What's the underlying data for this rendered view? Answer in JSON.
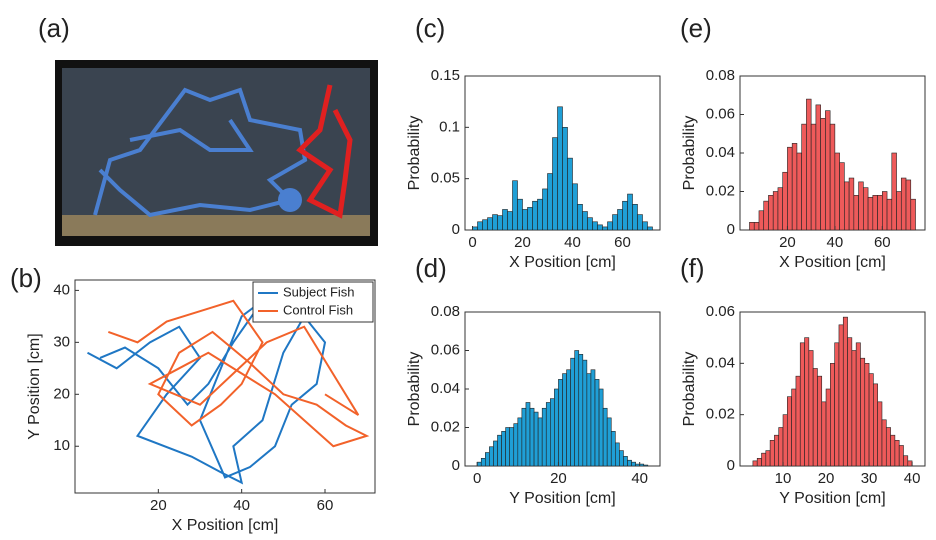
{
  "image_panel": {
    "panel": "(a)"
  },
  "chart_data": [
    {
      "type": "line",
      "panel": "(b)",
      "xlabel": "X Position [cm]",
      "ylabel": "Y Position [cm]",
      "xlim": [
        0,
        72
      ],
      "ylim": [
        1,
        42
      ],
      "xticks": [
        20,
        40,
        60
      ],
      "yticks": [
        10,
        20,
        30,
        40
      ],
      "legend": "upper right",
      "series": [
        {
          "name": "Subject Fish",
          "color": "#1f77c4",
          "x": [
            3,
            10,
            18,
            25,
            30,
            22,
            15,
            28,
            35,
            40,
            38,
            45,
            50,
            55,
            60,
            58,
            52,
            48,
            42,
            36,
            30,
            35,
            40,
            45,
            38,
            32,
            27,
            20,
            12,
            6
          ],
          "y": [
            28,
            25,
            30,
            33,
            27,
            20,
            12,
            8,
            5,
            3,
            10,
            15,
            28,
            35,
            30,
            22,
            18,
            10,
            6,
            4,
            15,
            25,
            35,
            38,
            30,
            22,
            18,
            25,
            29,
            27
          ]
        },
        {
          "name": "Control Fish",
          "color": "#f2622a",
          "x": [
            8,
            15,
            22,
            30,
            38,
            45,
            40,
            35,
            28,
            20,
            25,
            33,
            42,
            50,
            58,
            65,
            70,
            62,
            55,
            48,
            40,
            32,
            25,
            18,
            30,
            38,
            46,
            55,
            68,
            60
          ],
          "y": [
            32,
            30,
            34,
            36,
            38,
            30,
            22,
            18,
            14,
            20,
            28,
            32,
            26,
            20,
            18,
            14,
            12,
            10,
            15,
            20,
            24,
            28,
            25,
            22,
            18,
            24,
            30,
            33,
            16,
            20
          ]
        }
      ]
    },
    {
      "type": "histogram",
      "panel": "(c)",
      "xlabel": "X Position [cm]",
      "ylabel": "Probability",
      "color": "#1f9fd6",
      "xlim": [
        -3,
        75
      ],
      "ylim": [
        0,
        0.15
      ],
      "xticks": [
        0,
        20,
        40,
        60
      ],
      "yticks": [
        0,
        0.05,
        0.1,
        0.15
      ],
      "bins": [
        0,
        2,
        4,
        6,
        8,
        10,
        12,
        14,
        16,
        18,
        20,
        22,
        24,
        26,
        28,
        30,
        32,
        34,
        36,
        38,
        40,
        42,
        44,
        46,
        48,
        50,
        52,
        54,
        56,
        58,
        60,
        62,
        64,
        66,
        68,
        70,
        72
      ],
      "values": [
        0.003,
        0.008,
        0.01,
        0.012,
        0.015,
        0.014,
        0.02,
        0.018,
        0.048,
        0.03,
        0.02,
        0.022,
        0.028,
        0.03,
        0.04,
        0.055,
        0.09,
        0.12,
        0.1,
        0.07,
        0.045,
        0.025,
        0.018,
        0.012,
        0.008,
        0.005,
        0.003,
        0.008,
        0.015,
        0.02,
        0.028,
        0.035,
        0.025,
        0.015,
        0.008,
        0.003
      ]
    },
    {
      "type": "histogram",
      "panel": "(d)",
      "xlabel": "Y Position [cm]",
      "ylabel": "Probability",
      "color": "#1f9fd6",
      "xlim": [
        -3,
        45
      ],
      "ylim": [
        0,
        0.08
      ],
      "xticks": [
        0,
        20,
        40
      ],
      "yticks": [
        0,
        0.02,
        0.04,
        0.06,
        0.08
      ],
      "bins": [
        0,
        1,
        2,
        3,
        4,
        5,
        6,
        7,
        8,
        9,
        10,
        11,
        12,
        13,
        14,
        15,
        16,
        17,
        18,
        19,
        20,
        21,
        22,
        23,
        24,
        25,
        26,
        27,
        28,
        29,
        30,
        31,
        32,
        33,
        34,
        35,
        36,
        37,
        38,
        39,
        40,
        41,
        42
      ],
      "values": [
        0.002,
        0.004,
        0.007,
        0.01,
        0.013,
        0.016,
        0.018,
        0.02,
        0.02,
        0.022,
        0.025,
        0.03,
        0.033,
        0.03,
        0.028,
        0.025,
        0.03,
        0.033,
        0.035,
        0.04,
        0.045,
        0.048,
        0.05,
        0.056,
        0.06,
        0.058,
        0.055,
        0.048,
        0.05,
        0.045,
        0.04,
        0.03,
        0.025,
        0.018,
        0.012,
        0.008,
        0.005,
        0.003,
        0.002,
        0.001,
        0.001,
        0.0005
      ]
    },
    {
      "type": "histogram",
      "panel": "(e)",
      "xlabel": "X Position [cm]",
      "ylabel": "Probability",
      "color": "#ee5a5a",
      "xlim": [
        0,
        78
      ],
      "ylim": [
        0,
        0.08
      ],
      "xticks": [
        20,
        40,
        60
      ],
      "yticks": [
        0,
        0.02,
        0.04,
        0.06,
        0.08
      ],
      "bins": [
        4,
        6,
        8,
        10,
        12,
        14,
        16,
        18,
        20,
        22,
        24,
        26,
        28,
        30,
        32,
        34,
        36,
        38,
        40,
        42,
        44,
        46,
        48,
        50,
        52,
        54,
        56,
        58,
        60,
        62,
        64,
        66,
        68,
        70,
        72,
        74
      ],
      "values": [
        0.004,
        0.004,
        0.01,
        0.015,
        0.018,
        0.02,
        0.022,
        0.03,
        0.043,
        0.045,
        0.04,
        0.055,
        0.068,
        0.055,
        0.065,
        0.058,
        0.062,
        0.055,
        0.04,
        0.035,
        0.025,
        0.027,
        0.018,
        0.025,
        0.022,
        0.017,
        0.018,
        0.018,
        0.02,
        0.016,
        0.04,
        0.02,
        0.027,
        0.026,
        0.016
      ]
    },
    {
      "type": "histogram",
      "panel": "(f)",
      "xlabel": "Y Position [cm]",
      "ylabel": "Probability",
      "color": "#ee5a5a",
      "xlim": [
        0,
        43
      ],
      "ylim": [
        0,
        0.06
      ],
      "xticks": [
        10,
        20,
        30,
        40
      ],
      "yticks": [
        0,
        0.02,
        0.04,
        0.06
      ],
      "bins": [
        3,
        4,
        5,
        6,
        7,
        8,
        9,
        10,
        11,
        12,
        13,
        14,
        15,
        16,
        17,
        18,
        19,
        20,
        21,
        22,
        23,
        24,
        25,
        26,
        27,
        28,
        29,
        30,
        31,
        32,
        33,
        34,
        35,
        36,
        37,
        38,
        39,
        40
      ],
      "values": [
        0.002,
        0.003,
        0.005,
        0.006,
        0.01,
        0.012,
        0.015,
        0.02,
        0.027,
        0.03,
        0.035,
        0.048,
        0.05,
        0.045,
        0.038,
        0.035,
        0.025,
        0.03,
        0.04,
        0.048,
        0.055,
        0.058,
        0.05,
        0.045,
        0.048,
        0.042,
        0.04,
        0.036,
        0.032,
        0.025,
        0.018,
        0.015,
        0.012,
        0.01,
        0.008,
        0.004,
        0.002
      ]
    }
  ]
}
